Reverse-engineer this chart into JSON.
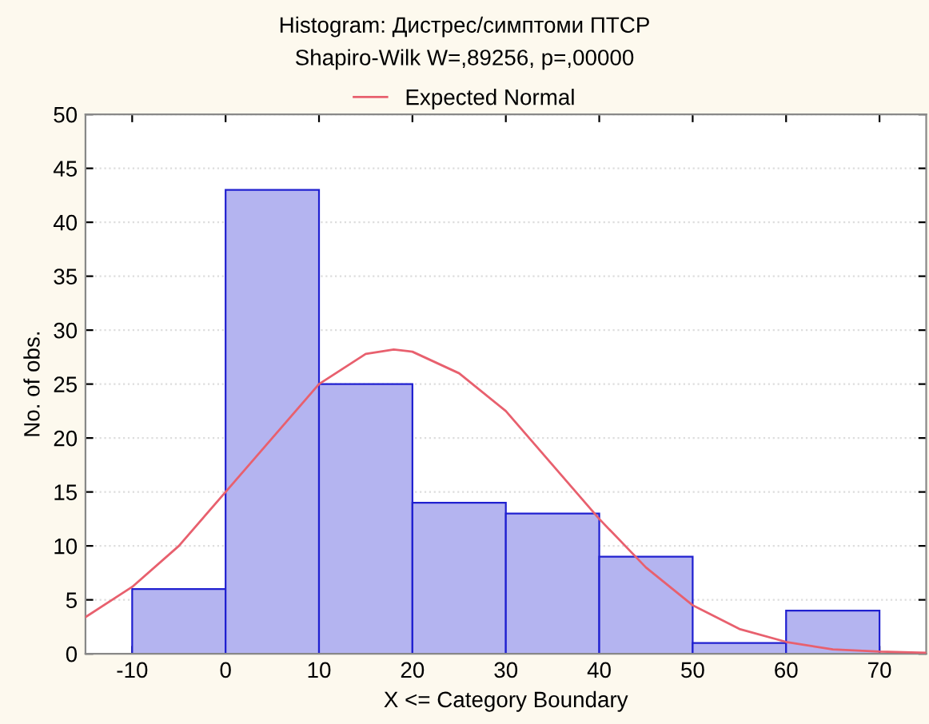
{
  "chart_data": {
    "type": "histogram",
    "title": "Histogram: Дистрес/симптоми ПТСР",
    "subtitle": "Shapiro-Wilk W=,89256, p=,00000",
    "xlabel": "X <= Category Boundary",
    "ylabel": "No. of obs.",
    "bins": [
      -10,
      0,
      10,
      20,
      30,
      40,
      50,
      60,
      70
    ],
    "values": [
      6,
      43,
      25,
      14,
      13,
      9,
      1,
      4
    ],
    "color": "#b4b4f0",
    "series": [
      {
        "type": "line",
        "name": "Expected Normal",
        "color": "#e8606e",
        "x": [
          -15,
          -10,
          -5,
          0,
          5,
          10,
          15,
          18,
          20,
          25,
          30,
          35,
          40,
          45,
          50,
          55,
          60,
          65,
          70,
          75
        ],
        "values": [
          3.4,
          6.2,
          10,
          15,
          20,
          25,
          27.8,
          28.2,
          28,
          26,
          22.5,
          17.5,
          12.5,
          8,
          4.5,
          2.3,
          1.1,
          0.4,
          0.2,
          0.1
        ]
      }
    ],
    "xlim": [
      -15,
      75
    ],
    "xticks": [
      -10,
      0,
      10,
      20,
      30,
      40,
      50,
      60,
      70
    ],
    "ylim": [
      0,
      50
    ],
    "yticks": [
      0,
      5,
      10,
      15,
      20,
      25,
      30,
      35,
      40,
      45,
      50
    ],
    "grid": "y",
    "legend": "top"
  }
}
